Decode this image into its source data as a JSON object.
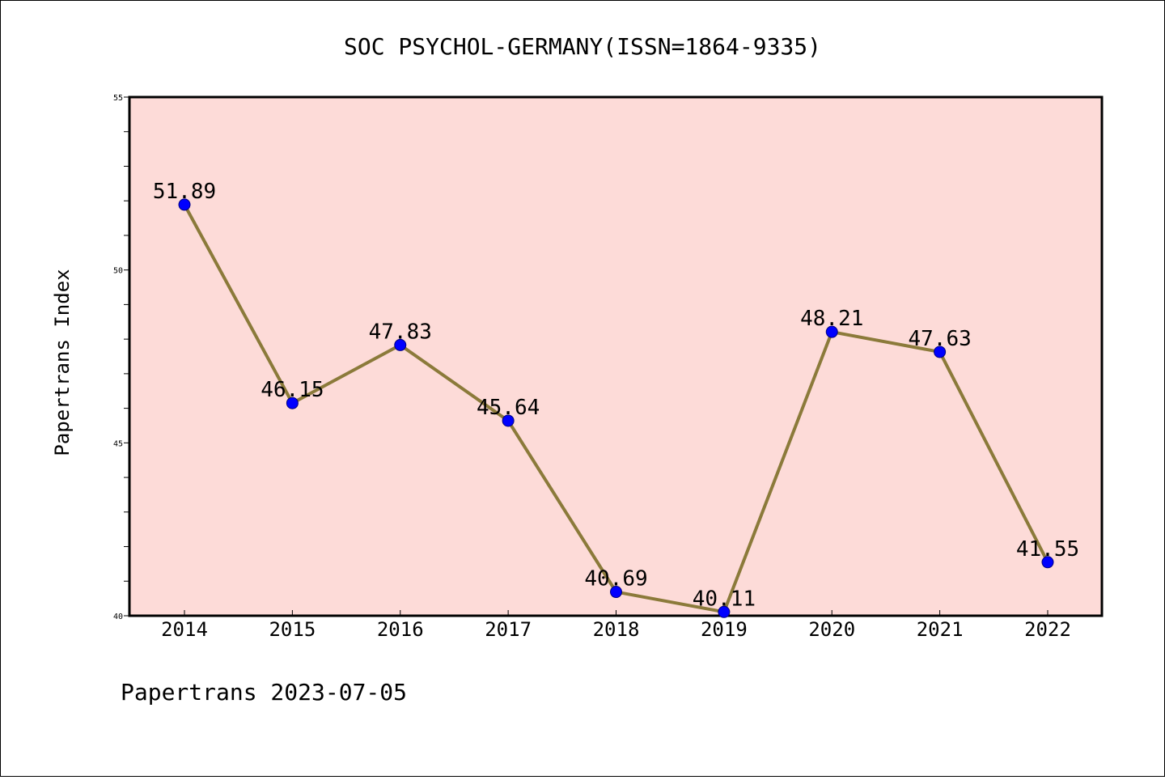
{
  "chart_data": {
    "type": "line",
    "title": "SOC PSYCHOL-GERMANY(ISSN=1864-9335)",
    "xlabel": "",
    "ylabel": "Papertrans Index",
    "categories": [
      "2014",
      "2015",
      "2016",
      "2017",
      "2018",
      "2019",
      "2020",
      "2021",
      "2022"
    ],
    "values": [
      51.89,
      46.15,
      47.83,
      45.64,
      40.69,
      40.11,
      48.21,
      47.63,
      41.55
    ],
    "data_labels": [
      "51.89",
      "46.15",
      "47.83",
      "45.64",
      "40.69",
      "40.11",
      "48.21",
      "47.63",
      "41.55"
    ],
    "ylim": [
      40,
      55
    ],
    "yticks": [
      40,
      45,
      50,
      55
    ],
    "ytick_labels": [
      "40",
      "45",
      "50",
      "55"
    ],
    "grid": false,
    "legend": "none",
    "plot_background": "#fddbd8",
    "line_color": "#8b7a3a",
    "marker_color": "#0000ff",
    "footer": "Papertrans 2023-07-05"
  }
}
